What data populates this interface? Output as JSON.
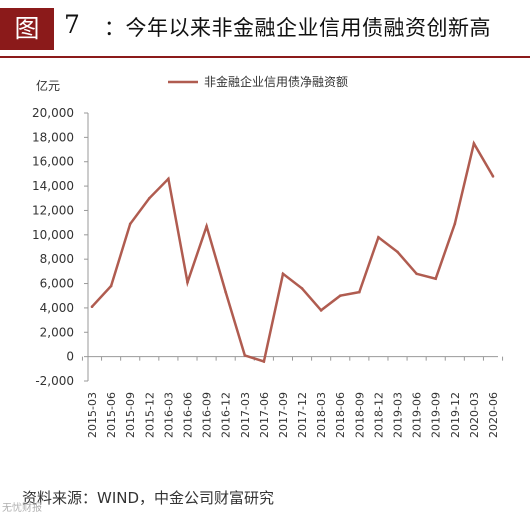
{
  "header": {
    "figure_tag": "图",
    "figure_number": "7",
    "title": "：今年以来非金融企业信用债融资创新高"
  },
  "footer": {
    "source": "资料来源：WIND，中金公司财富研究"
  },
  "watermark": "无忧财报",
  "colors": {
    "accent": "#8b1a1a",
    "series_line": "#b05c50",
    "axis": "#999999"
  },
  "chart_data": {
    "type": "line",
    "unit_label": "亿元",
    "xlabel": "",
    "ylabel": "",
    "ylim": [
      -2000,
      20000
    ],
    "yticks": [
      -2000,
      0,
      2000,
      4000,
      6000,
      8000,
      10000,
      12000,
      14000,
      16000,
      18000,
      20000
    ],
    "ytick_labels": [
      "-2,000",
      "0",
      "2,000",
      "4,000",
      "6,000",
      "8,000",
      "10,000",
      "12,000",
      "14,000",
      "16,000",
      "18,000",
      "20,000"
    ],
    "grid": false,
    "legend_position": "top-left",
    "categories": [
      "2015-03",
      "2015-06",
      "2015-09",
      "2015-12",
      "2016-03",
      "2016-06",
      "2016-09",
      "2016-12",
      "2017-03",
      "2017-06",
      "2017-09",
      "2017-12",
      "2018-03",
      "2018-06",
      "2018-09",
      "2018-12",
      "2019-03",
      "2019-06",
      "2019-09",
      "2019-12",
      "2020-03",
      "2020-06"
    ],
    "series": [
      {
        "name": "非金融企业信用债净融资额",
        "values": [
          4100,
          5800,
          10900,
          13000,
          14600,
          6100,
          10700,
          5300,
          100,
          -400,
          6800,
          5600,
          3800,
          5000,
          5300,
          9800,
          8600,
          6800,
          6400,
          10900,
          17500,
          14800
        ]
      }
    ]
  }
}
